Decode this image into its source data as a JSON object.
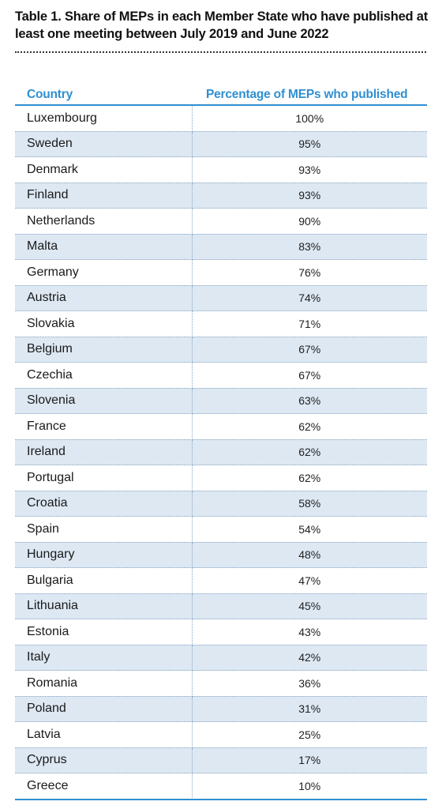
{
  "title": "Table 1. Share of MEPs in each Member State who have published at least one meeting between July 2019 and June 2022",
  "table": {
    "headers": [
      "Country",
      "Percentage of MEPs who published"
    ],
    "rows": [
      {
        "country": "Luxembourg",
        "pct": "100%"
      },
      {
        "country": "Sweden",
        "pct": "95%"
      },
      {
        "country": "Denmark",
        "pct": "93%"
      },
      {
        "country": "Finland",
        "pct": "93%"
      },
      {
        "country": "Netherlands",
        "pct": "90%"
      },
      {
        "country": "Malta",
        "pct": "83%"
      },
      {
        "country": "Germany",
        "pct": "76%"
      },
      {
        "country": "Austria",
        "pct": "74%"
      },
      {
        "country": "Slovakia",
        "pct": "71%"
      },
      {
        "country": "Belgium",
        "pct": "67%"
      },
      {
        "country": "Czechia",
        "pct": "67%"
      },
      {
        "country": "Slovenia",
        "pct": "63%"
      },
      {
        "country": "France",
        "pct": "62%"
      },
      {
        "country": "Ireland",
        "pct": "62%"
      },
      {
        "country": "Portugal",
        "pct": "62%"
      },
      {
        "country": "Croatia",
        "pct": "58%"
      },
      {
        "country": "Spain",
        "pct": "54%"
      },
      {
        "country": "Hungary",
        "pct": "48%"
      },
      {
        "country": "Bulgaria",
        "pct": "47%"
      },
      {
        "country": "Lithuania",
        "pct": "45%"
      },
      {
        "country": "Estonia",
        "pct": "43%"
      },
      {
        "country": "Italy",
        "pct": "42%"
      },
      {
        "country": "Romania",
        "pct": "36%"
      },
      {
        "country": "Poland",
        "pct": "31%"
      },
      {
        "country": "Latvia",
        "pct": "25%"
      },
      {
        "country": "Cyprus",
        "pct": "17%"
      },
      {
        "country": "Greece",
        "pct": "10%"
      }
    ]
  },
  "colors": {
    "header_text": "#2f8fd1",
    "stripe": "#dde8f3",
    "rule": "#2f8fd1"
  }
}
